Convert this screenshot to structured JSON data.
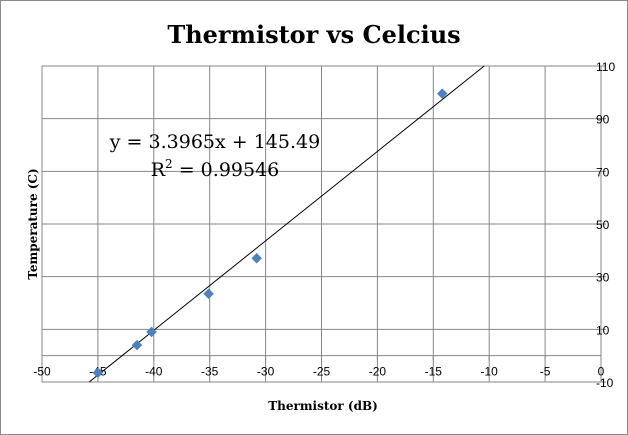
{
  "chart_data": {
    "type": "scatter",
    "title": "Thermistor vs Celcius",
    "xlabel": "Thermistor (dB)",
    "ylabel": "Temperature (C)",
    "xlim": [
      -50,
      0
    ],
    "ylim": [
      -10,
      110
    ],
    "x_ticks": [
      -50,
      -45,
      -40,
      -35,
      -30,
      -25,
      -20,
      -15,
      -10,
      -5,
      0
    ],
    "y_ticks": [
      -10,
      10,
      30,
      50,
      70,
      90,
      110
    ],
    "x_tick_labels": [
      "-50",
      "-45",
      "-40",
      "-35",
      "-30",
      "-25",
      "-20",
      "-15",
      "-10",
      "-5",
      "0"
    ],
    "y_tick_labels": [
      "-10",
      "10",
      "30",
      "50",
      "70",
      "90",
      "110"
    ],
    "grid": true,
    "series": [
      {
        "points": [
          {
            "x": -45.0,
            "y": -6.5
          },
          {
            "x": -41.5,
            "y": 4.0
          },
          {
            "x": -40.2,
            "y": 9.0
          },
          {
            "x": -35.1,
            "y": 23.5
          },
          {
            "x": -30.8,
            "y": 37.0
          },
          {
            "x": -14.2,
            "y": 99.5
          }
        ],
        "color": "#4f81bd",
        "marker": "diamond"
      }
    ],
    "trendline": {
      "type": "linear",
      "slope": 3.3965,
      "intercept": 145.49,
      "color": "#000000",
      "equation_label": "y = 3.3965x + 145.49",
      "r2_prefix": "R",
      "r2_exp": "2",
      "r2_rest": " = 0.99546"
    }
  }
}
